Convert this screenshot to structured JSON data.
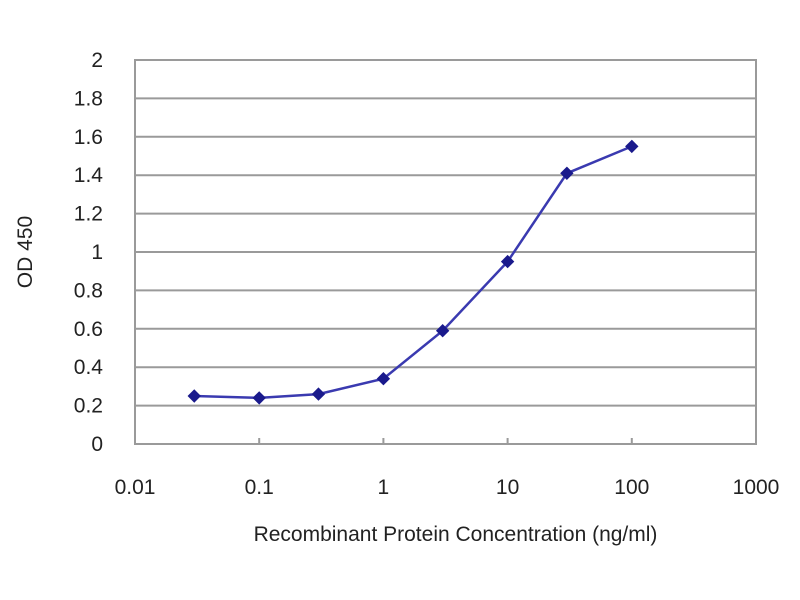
{
  "chart_data": {
    "type": "line",
    "title": "",
    "xlabel": "Recombinant Protein Concentration (ng/ml)",
    "ylabel": "OD 450",
    "x_scale": "log",
    "xlim": [
      0.01,
      1000
    ],
    "ylim": [
      0,
      2
    ],
    "x_ticks": [
      "0.01",
      "0.1",
      "1",
      "10",
      "100",
      "1000"
    ],
    "x_tick_values": [
      0.01,
      0.1,
      1,
      10,
      100,
      1000
    ],
    "y_ticks": [
      "0",
      "0.2",
      "0.4",
      "0.6",
      "0.8",
      "1",
      "1.2",
      "1.4",
      "1.6",
      "1.8",
      "2"
    ],
    "y_tick_values": [
      0,
      0.2,
      0.4,
      0.6,
      0.8,
      1,
      1.2,
      1.4,
      1.6,
      1.8,
      2
    ],
    "grid": "horizontal",
    "legend": "none",
    "series": [
      {
        "x": [
          0.03,
          0.1,
          0.3,
          1,
          3,
          10,
          30,
          100
        ],
        "y": [
          0.25,
          0.24,
          0.26,
          0.34,
          0.59,
          0.95,
          1.41,
          1.55
        ],
        "color": "#1a1a8c",
        "marker": "diamond"
      }
    ],
    "colors": {
      "line": "#3a3ab0",
      "marker": "#1a1a8c",
      "grid": "#9a9a9a",
      "frame": "#9a9a9a"
    }
  }
}
